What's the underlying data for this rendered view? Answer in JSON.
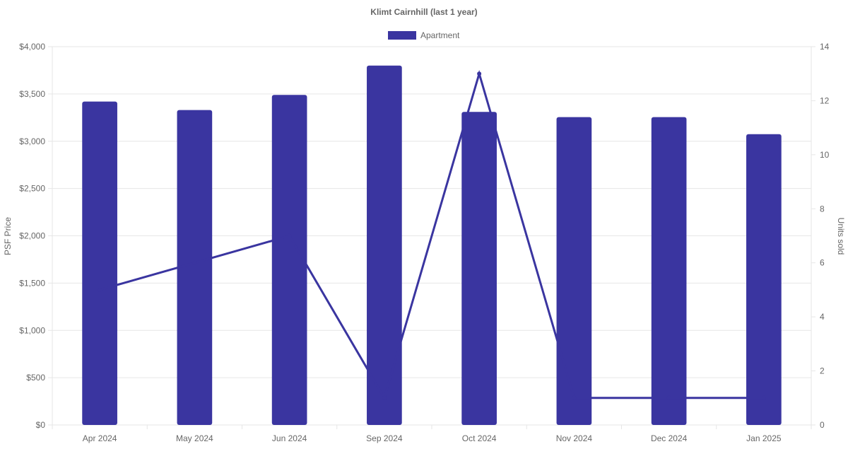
{
  "chart_data": {
    "type": "bar",
    "title": "Klimt Cairnhill (last 1 year)",
    "categories": [
      "Apr 2024",
      "May 2024",
      "Jun 2024",
      "Sep 2024",
      "Oct 2024",
      "Nov 2024",
      "Dec 2024",
      "Jan 2025"
    ],
    "series": [
      {
        "name": "Apartment",
        "type": "bar",
        "axis": "left",
        "values": [
          3420,
          3330,
          3490,
          3800,
          3310,
          3255,
          3255,
          3075
        ]
      },
      {
        "type": "line",
        "axis": "right",
        "values": [
          5,
          6,
          7,
          1,
          13,
          1,
          1,
          1
        ]
      }
    ],
    "y_left": {
      "label": "PSF Price",
      "ylim": [
        0,
        4000
      ],
      "ticks": [
        "$0",
        "$500",
        "$1,000",
        "$1,500",
        "$2,000",
        "$2,500",
        "$3,000",
        "$3,500",
        "$4,000"
      ]
    },
    "y_right": {
      "label": "Units sold",
      "ylim": [
        0,
        14
      ],
      "ticks": [
        "0",
        "2",
        "4",
        "6",
        "8",
        "10",
        "12",
        "14"
      ]
    },
    "legend": {
      "position": "top-center",
      "entries": [
        "Apartment"
      ]
    },
    "grid": true,
    "colors": {
      "series": "#3a35a0",
      "grid": "#e6e6e6",
      "text": "#666666",
      "title": "#666666"
    }
  }
}
